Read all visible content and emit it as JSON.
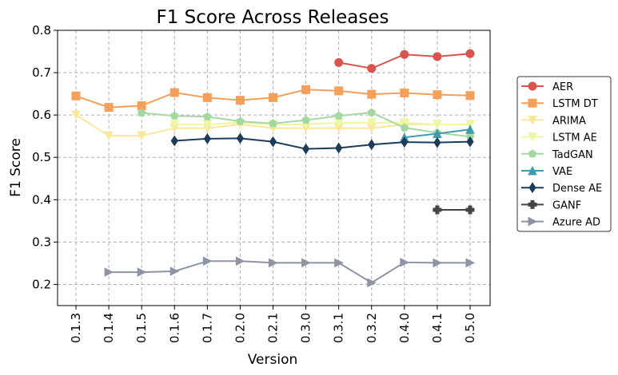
{
  "chart_data": {
    "type": "line",
    "title": "F1 Score Across Releases",
    "xlabel": "Version",
    "ylabel": "F1 Score",
    "ylim": [
      0.15,
      0.8
    ],
    "yticks": [
      "0.2",
      "0.3",
      "0.4",
      "0.5",
      "0.6",
      "0.7",
      "0.8"
    ],
    "grid": true,
    "legend_position": "right",
    "categories": [
      "0.1.3",
      "0.1.4",
      "0.1.5",
      "0.1.6",
      "0.1.7",
      "0.2.0",
      "0.2.1",
      "0.3.0",
      "0.3.1",
      "0.3.2",
      "0.4.0",
      "0.4.1",
      "0.5.0"
    ],
    "series": [
      {
        "name": "AER",
        "color": "#d9534f",
        "marker": "circle",
        "values": [
          null,
          null,
          null,
          null,
          null,
          null,
          null,
          null,
          0.724,
          0.71,
          0.743,
          0.738,
          0.745
        ]
      },
      {
        "name": "LSTM DT",
        "color": "#f5a05a",
        "marker": "square",
        "values": [
          0.645,
          0.618,
          0.622,
          0.653,
          0.641,
          0.635,
          0.641,
          0.66,
          0.657,
          0.649,
          0.652,
          0.648,
          0.646
        ]
      },
      {
        "name": "ARIMA",
        "color": "#f9e79a",
        "marker": "triangle-down",
        "values": [
          0.6,
          0.551,
          0.551,
          0.569,
          0.569,
          0.578,
          0.569,
          0.569,
          0.569,
          0.569,
          0.578,
          0.578,
          0.578
        ]
      },
      {
        "name": "LSTM AE",
        "color": "#eef5a3",
        "marker": "triangle-down",
        "values": [
          null,
          null,
          null,
          0.578,
          0.578,
          0.582,
          0.578,
          0.578,
          0.582,
          0.582,
          0.582,
          0.578,
          0.578
        ]
      },
      {
        "name": "TadGAN",
        "color": "#a3d9a0",
        "marker": "pentagon",
        "values": [
          null,
          null,
          0.605,
          0.598,
          0.596,
          0.585,
          0.58,
          0.588,
          0.598,
          0.606,
          0.57,
          0.558,
          0.549
        ]
      },
      {
        "name": "VAE",
        "color": "#3e9bb0",
        "marker": "triangle-up",
        "values": [
          null,
          null,
          null,
          null,
          null,
          null,
          null,
          null,
          null,
          null,
          0.547,
          0.556,
          0.566
        ]
      },
      {
        "name": "Dense AE",
        "color": "#1b3c5a",
        "marker": "diamond",
        "values": [
          null,
          null,
          null,
          0.539,
          0.544,
          0.545,
          0.537,
          0.52,
          0.522,
          0.53,
          0.536,
          0.535,
          0.537
        ]
      },
      {
        "name": "GANF",
        "color": "#444444",
        "marker": "plus",
        "values": [
          null,
          null,
          null,
          null,
          null,
          null,
          null,
          null,
          null,
          null,
          null,
          0.376,
          0.376
        ]
      },
      {
        "name": "Azure AD",
        "color": "#8e94a3",
        "marker": "triangle-right",
        "values": [
          null,
          0.229,
          0.229,
          0.231,
          0.255,
          0.255,
          0.251,
          0.251,
          0.251,
          0.204,
          0.252,
          0.251,
          0.251
        ]
      }
    ]
  }
}
